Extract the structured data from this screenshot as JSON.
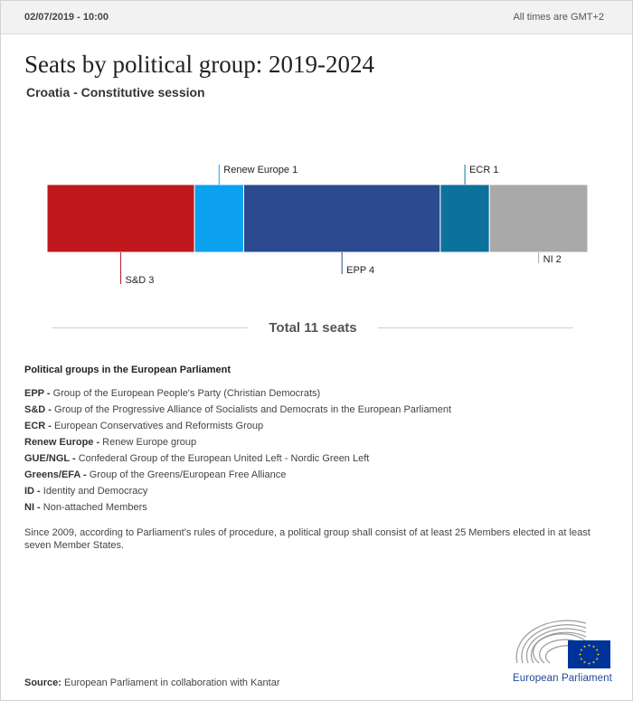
{
  "header": {
    "timestamp": "02/07/2019 - 10:00",
    "timezone_note": "All times are GMT+2"
  },
  "title": "Seats by political group: 2019-2024",
  "subtitle": "Croatia - Constitutive session",
  "chart_data": {
    "type": "bar",
    "orientation": "horizontal-stacked",
    "total_seats": 11,
    "segments": [
      {
        "group": "S&D",
        "seats": 3,
        "label": "S&D 3",
        "color": "#c0181c",
        "label_side": "below"
      },
      {
        "group": "Renew Europe",
        "seats": 1,
        "label": "Renew Europe 1",
        "color": "#0ba1ef",
        "label_side": "above"
      },
      {
        "group": "EPP",
        "seats": 4,
        "label": "EPP 4",
        "color": "#2b4a8f",
        "label_side": "below"
      },
      {
        "group": "ECR",
        "seats": 1,
        "label": "ECR 1",
        "color": "#0c719b",
        "label_side": "above"
      },
      {
        "group": "NI",
        "seats": 2,
        "label": "NI 2",
        "color": "#a9a9a9",
        "label_side": "below"
      }
    ],
    "grid": false,
    "legend": "none"
  },
  "total": {
    "label": "Total 11 seats"
  },
  "groups_section": {
    "title": "Political groups in the European Parliament",
    "items": [
      {
        "abbr": "EPP -",
        "name": "Group of the European People's Party (Christian Democrats)"
      },
      {
        "abbr": "S&D -",
        "name": "Group of the Progressive Alliance of Socialists and Democrats in the European Parliament"
      },
      {
        "abbr": "ECR -",
        "name": "European Conservatives and Reformists Group"
      },
      {
        "abbr": "Renew Europe -",
        "name": "Renew Europe group"
      },
      {
        "abbr": "GUE/NGL -",
        "name": "Confederal Group of the European United Left - Nordic Green Left"
      },
      {
        "abbr": "Greens/EFA -",
        "name": "Group of the Greens/European Free Alliance"
      },
      {
        "abbr": "ID -",
        "name": "Identity and Democracy"
      },
      {
        "abbr": "NI -",
        "name": "Non-attached Members"
      }
    ]
  },
  "note": "Since 2009, according to Parliament's rules of procedure, a political group shall consist of at least 25 Members elected in at least seven Member States.",
  "source": {
    "label": "Source:",
    "text": "European Parliament in collaboration with Kantar"
  },
  "logo": {
    "brand_text": "European Parliament",
    "icon": "european-parliament-hemicycle-icon",
    "flag_icon": "eu-flag-icon",
    "flag_color": "#003399",
    "star_color": "#ffcc00"
  }
}
